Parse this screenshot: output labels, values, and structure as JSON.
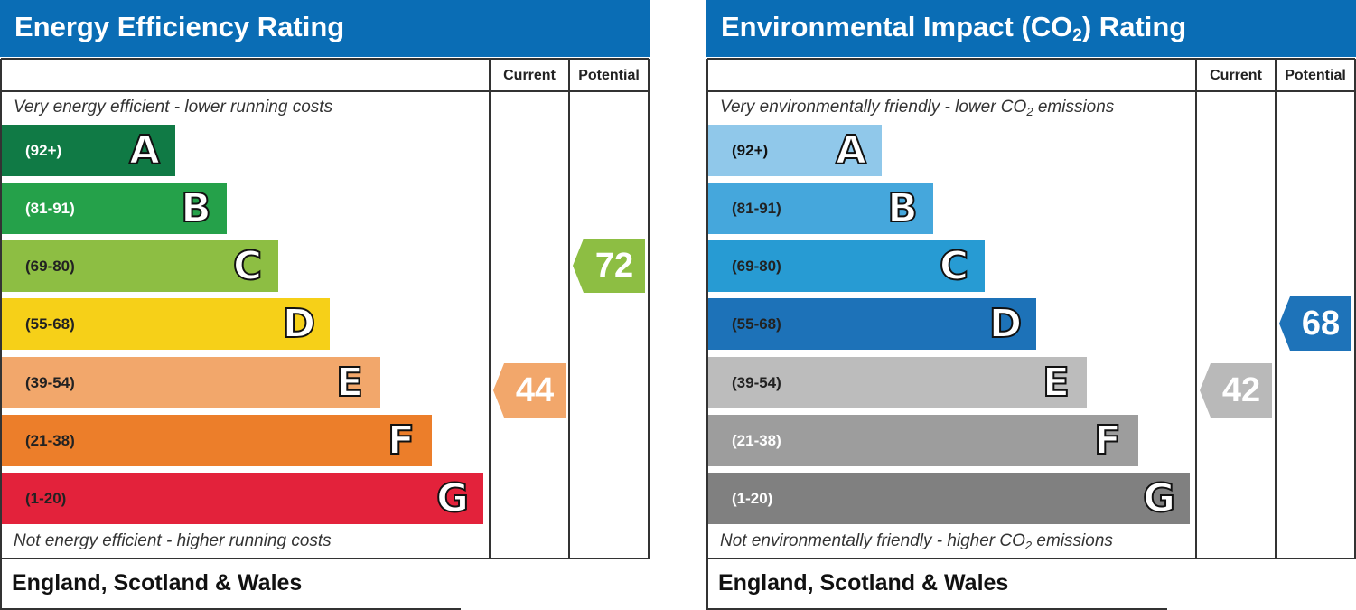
{
  "chart_data": [
    {
      "type": "bar",
      "title": "Energy Efficiency Rating",
      "columns": [
        "Current",
        "Potential"
      ],
      "top_caption": "Very energy efficient - lower running costs",
      "bottom_caption": "Not energy efficient - higher running costs",
      "footer": "England, Scotland & Wales",
      "bands": [
        {
          "letter": "A",
          "range": "(92+)",
          "color": "#107a45",
          "text_color": "#ffffff"
        },
        {
          "letter": "B",
          "range": "(81-91)",
          "color": "#25a14a",
          "text_color": "#ffffff"
        },
        {
          "letter": "C",
          "range": "(69-80)",
          "color": "#8dbe43",
          "text_color": "#222222"
        },
        {
          "letter": "D",
          "range": "(55-68)",
          "color": "#f6d018",
          "text_color": "#222222"
        },
        {
          "letter": "E",
          "range": "(39-54)",
          "color": "#f2a76b",
          "text_color": "#222222"
        },
        {
          "letter": "F",
          "range": "(21-38)",
          "color": "#ec7e2a",
          "text_color": "#222222"
        },
        {
          "letter": "G",
          "range": "(1-20)",
          "color": "#e3223b",
          "text_color": "#222222"
        }
      ],
      "current": {
        "value": 44,
        "band": "E",
        "color": "#f2a76b"
      },
      "potential": {
        "value": 72,
        "band": "C",
        "color": "#8dbe43"
      }
    },
    {
      "type": "bar",
      "title": "Environmental Impact (CO",
      "title_sub": "2",
      "title_suffix": ") Rating",
      "columns": [
        "Current",
        "Potential"
      ],
      "top_caption": "Very environmentally friendly - lower CO",
      "top_caption_sub": "2",
      "top_caption_suffix": " emissions",
      "bottom_caption": "Not environmentally friendly - higher CO",
      "bottom_caption_sub": "2",
      "bottom_caption_suffix": " emissions",
      "footer": "England, Scotland & Wales",
      "bands": [
        {
          "letter": "A",
          "range": "(92+)",
          "color": "#90c8ea",
          "text_color": "#111111"
        },
        {
          "letter": "B",
          "range": "(81-91)",
          "color": "#45a7dc",
          "text_color": "#222222"
        },
        {
          "letter": "C",
          "range": "(69-80)",
          "color": "#279bd3",
          "text_color": "#222222"
        },
        {
          "letter": "D",
          "range": "(55-68)",
          "color": "#1d72b8",
          "text_color": "#222222"
        },
        {
          "letter": "E",
          "range": "(39-54)",
          "color": "#bcbcbc",
          "text_color": "#222222"
        },
        {
          "letter": "F",
          "range": "(21-38)",
          "color": "#9d9d9d",
          "text_color": "#ffffff"
        },
        {
          "letter": "G",
          "range": "(1-20)",
          "color": "#808080",
          "text_color": "#ffffff"
        }
      ],
      "current": {
        "value": 42,
        "band": "E",
        "color": "#b9b9b9"
      },
      "potential": {
        "value": 68,
        "band": "D",
        "color": "#1e73b9"
      }
    }
  ]
}
